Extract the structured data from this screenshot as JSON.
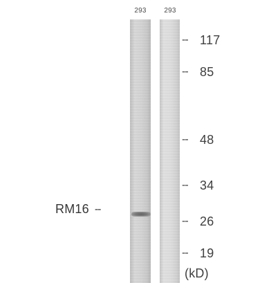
{
  "blot": {
    "lanes": [
      {
        "label": "293"
      },
      {
        "label": "293"
      }
    ],
    "protein": {
      "name": "RM16",
      "dash": "--"
    },
    "markers": [
      {
        "dash": "--",
        "value": "117"
      },
      {
        "dash": "--",
        "value": "85"
      },
      {
        "dash": "--",
        "value": "48"
      },
      {
        "dash": "--",
        "value": "34"
      },
      {
        "dash": "--",
        "value": "26"
      },
      {
        "dash": "--",
        "value": "19"
      }
    ],
    "unit": "(kD)"
  }
}
